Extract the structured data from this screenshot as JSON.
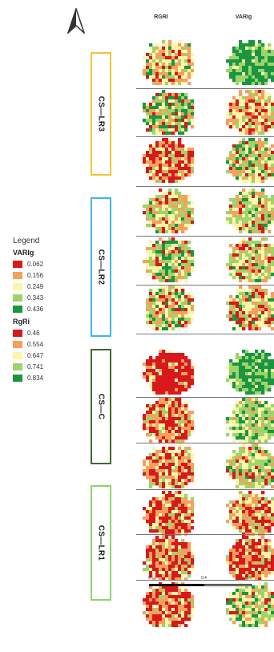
{
  "columns": [
    "RGRI",
    "VARIg"
  ],
  "groups": [
    {
      "label": "CS—LR3",
      "color": "#f2c331"
    },
    {
      "label": "CS—LR2",
      "color": "#3fb6e6"
    },
    {
      "label": "CS—C",
      "color": "#3d6b2d"
    },
    {
      "label": "CS—LR1",
      "color": "#8fd46a"
    }
  ],
  "legend": {
    "title": "Legend",
    "varig_title": "VARIg",
    "varig_items": [
      {
        "value": "0.062",
        "color": "#d7191c"
      },
      {
        "value": "0.156",
        "color": "#f4a15c"
      },
      {
        "value": "0.249",
        "color": "#fbf7a8"
      },
      {
        "value": "0.343",
        "color": "#9fd46b"
      },
      {
        "value": "0.436",
        "color": "#1a9641"
      }
    ],
    "rgri_title": "RgRi",
    "rgri_items": [
      {
        "value": "0.46",
        "color": "#d7191c"
      },
      {
        "value": "0.554",
        "color": "#f4a15c"
      },
      {
        "value": "0.647",
        "color": "#fbf7a8"
      },
      {
        "value": "0.741",
        "color": "#9fd46b"
      },
      {
        "value": "0.834",
        "color": "#1a9641"
      }
    ]
  },
  "scale": {
    "labels": [
      "0",
      "0.4",
      "0.8 m"
    ]
  },
  "north_arrow": "north-arrow-icon"
}
